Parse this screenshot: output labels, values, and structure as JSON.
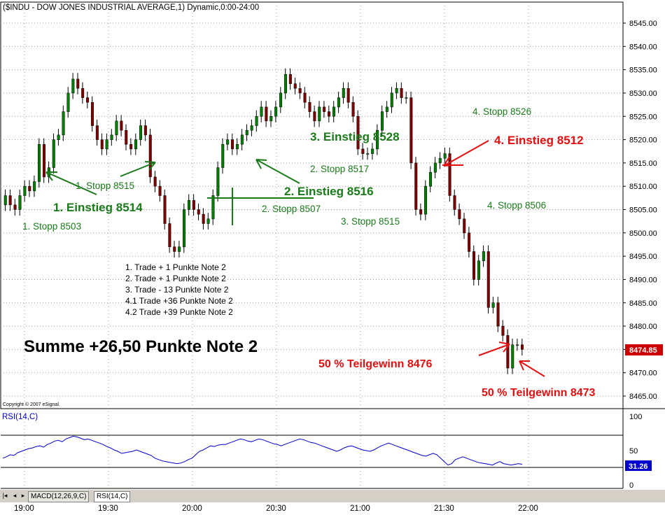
{
  "window": {
    "title": "($INDU - DOW JONES INDUSTRIAL AVERAGE,1) Dynamic,0:00-24:00",
    "copyright": "Copyright © 2007 eSignal."
  },
  "colors": {
    "up_candle": "#008000",
    "down_candle": "#800000",
    "green_text": "#1a7a1a",
    "red_text": "#e01010",
    "rsi_line": "#0000cc",
    "price_box": "#cc0000"
  },
  "tabs": {
    "items": [
      "MACD(12,26,9,C)",
      "RSI(14,C)"
    ],
    "active": "RSI(14,C)"
  },
  "rsi": {
    "label": "RSI(14,C)",
    "value_box": "31.26",
    "y_ticks": [
      "100",
      "50",
      "0"
    ],
    "levels": [
      70,
      30
    ],
    "values": [
      40,
      42,
      45,
      44,
      48,
      50,
      52,
      54,
      55,
      57,
      58,
      56,
      60,
      62,
      65,
      66,
      64,
      68,
      70,
      72,
      71,
      69,
      67,
      68,
      66,
      64,
      62,
      60,
      57,
      55,
      52,
      50,
      47,
      48,
      49,
      50,
      52,
      50,
      48,
      46,
      44,
      40,
      38,
      36,
      35,
      34,
      33,
      32,
      33,
      35,
      38,
      40,
      45,
      50,
      52,
      55,
      58,
      57,
      59,
      60,
      60,
      62,
      64,
      66,
      68,
      67,
      65,
      64,
      66,
      68,
      67,
      65,
      63,
      61,
      60,
      58,
      60,
      62,
      64,
      66,
      68,
      67,
      65,
      63,
      62,
      60,
      58,
      56,
      54,
      52,
      50,
      52,
      55,
      57,
      58,
      56,
      54,
      52,
      51,
      50,
      52,
      55,
      58,
      60,
      62,
      60,
      58,
      56,
      54,
      52,
      50,
      48,
      46,
      44,
      43,
      45,
      47,
      45,
      40,
      35,
      30,
      32,
      38,
      40,
      42,
      40,
      38,
      36,
      34,
      33,
      32,
      31,
      30,
      33,
      35,
      32,
      31,
      30,
      31,
      32,
      31
    ]
  },
  "chart_data": {
    "type": "candlestick",
    "title": "($INDU - DOW JONES INDUSTRIAL AVERAGE,1) Dynamic,0:00-24:00",
    "x_ticks": [
      "19:00",
      "19:30",
      "20:00",
      "20:30",
      "21:00",
      "21:30",
      "22:00"
    ],
    "y_ticks": [
      "8545.00",
      "8540.00",
      "8535.00",
      "8530.00",
      "8525.00",
      "8520.00",
      "8515.00",
      "8510.00",
      "8505.00",
      "8500.00",
      "8495.00",
      "8490.00",
      "8485.00",
      "8480.00",
      "8475.00",
      "8470.00",
      "8465.00"
    ],
    "ylim": [
      8464,
      8547
    ],
    "last_price_label": "8474.85",
    "close": [
      8508,
      8506,
      8505,
      8508,
      8510,
      8509,
      8511,
      8519,
      8512,
      8514,
      8520,
      8521,
      8526,
      8530,
      8533,
      8531,
      8529,
      8528,
      8523,
      8520,
      8518,
      8520,
      8521,
      8524,
      8522,
      8519,
      8518,
      8520,
      8523,
      8521,
      8512,
      8510,
      8508,
      8502,
      8497,
      8496,
      8497,
      8505,
      8507,
      8505,
      8504,
      8502,
      8503,
      8508,
      8514,
      8519,
      8520,
      8518,
      8519,
      8521,
      8522,
      8523,
      8525,
      8527,
      8524,
      8525,
      8527,
      8530,
      8534,
      8532,
      8531,
      8530,
      8528,
      8526,
      8524,
      8527,
      8526,
      8525,
      8527,
      8529,
      8531,
      8528,
      8525,
      8518,
      8517,
      8517,
      8518,
      8522,
      8526,
      8527,
      8530,
      8531,
      8529,
      8529,
      8515,
      8505,
      8504,
      8510,
      8513,
      8515,
      8516,
      8517,
      8508,
      8505,
      8503,
      8500,
      8496,
      8490,
      8494,
      8496,
      8484,
      8485,
      8480,
      8478,
      8471,
      8476,
      8476,
      8475
    ]
  },
  "annotations": {
    "green": [
      {
        "text": "1. Stopp 8515"
      },
      {
        "text": "1. Einstieg 8514"
      },
      {
        "text": "1. Stopp 8503"
      },
      {
        "text": "2. Stopp 8517"
      },
      {
        "text": "2. Einstieg 8516"
      },
      {
        "text": "2. Stopp 8507"
      },
      {
        "text": "3. Einstieg 8528"
      },
      {
        "text": "3. Stopp 8515"
      },
      {
        "text": "4. Stopp 8526"
      },
      {
        "text": "4. Stopp 8506"
      }
    ],
    "red": [
      {
        "text": "4. Einstieg 8512"
      },
      {
        "text": "50 % Teilgewinn 8476"
      },
      {
        "text": "50 % Teilgewinn 8473"
      }
    ],
    "trades": [
      "1.    Trade + 1  Punkte Note 2",
      "2.    Trade + 1  Punkte Note 2",
      "3.    Trade - 13 Punkte Note 2",
      "4.1 Trade +36 Punkte Note 2",
      "4.2 Trade +39 Punkte Note 2"
    ],
    "summary": "Summe +26,50 Punkte Note 2"
  }
}
